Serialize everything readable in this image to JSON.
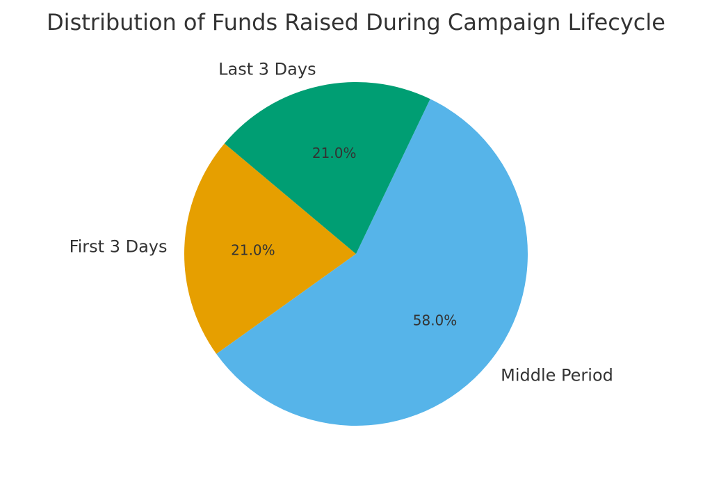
{
  "chart_data": {
    "type": "pie",
    "title": "Distribution of Funds Raised During Campaign Lifecycle",
    "categories": [
      "First 3 Days",
      "Middle Period",
      "Last 3 Days"
    ],
    "values": [
      21.0,
      58.0,
      21.0
    ],
    "percent_labels": [
      "21.0%",
      "58.0%",
      "21.0%"
    ],
    "colors": [
      "#E69F00",
      "#56B4E9",
      "#009E73"
    ],
    "start_angle_deg": 140,
    "direction": "counterclockwise",
    "legend": "none"
  }
}
